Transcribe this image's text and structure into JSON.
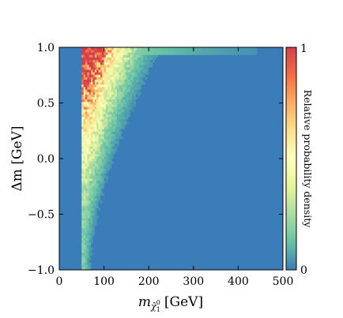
{
  "chart_data": {
    "type": "heatmap",
    "title": "",
    "xlabel_main": "m",
    "xlabel_sub": "χ̃",
    "xlabel_sub_sup": "0",
    "xlabel_sub_idx": "1",
    "xlabel_unit": "[GeV]",
    "ylabel": "Δm [GeV]",
    "xlim": [
      0,
      500
    ],
    "ylim": [
      -1.0,
      1.0
    ],
    "x_ticks": [
      0,
      100,
      200,
      300,
      400,
      500
    ],
    "x_tick_labels": [
      "0",
      "100",
      "200",
      "300",
      "400",
      "500"
    ],
    "y_ticks": [
      1.0,
      0.5,
      0.0,
      -0.5,
      -1.0
    ],
    "y_tick_labels": [
      "1.0",
      "0.5",
      "0.0",
      "−0.5",
      "−1.0"
    ],
    "colorbar": {
      "label": "Relative probability density",
      "range": [
        0,
        1
      ],
      "tick_labels": [
        "1",
        "0"
      ],
      "colormap": [
        "#3a7db8",
        "#66c2a5",
        "#abdda4",
        "#e6f598",
        "#ffffbf",
        "#fee08b",
        "#fdae61",
        "#f46d43",
        "#d53e4f"
      ]
    },
    "features": {
      "background_density": 0.0,
      "edge_x": 50,
      "peak_x": 70,
      "peak_band_dm": [
        0.5,
        1.0
      ],
      "tail_max_x": 500
    }
  }
}
